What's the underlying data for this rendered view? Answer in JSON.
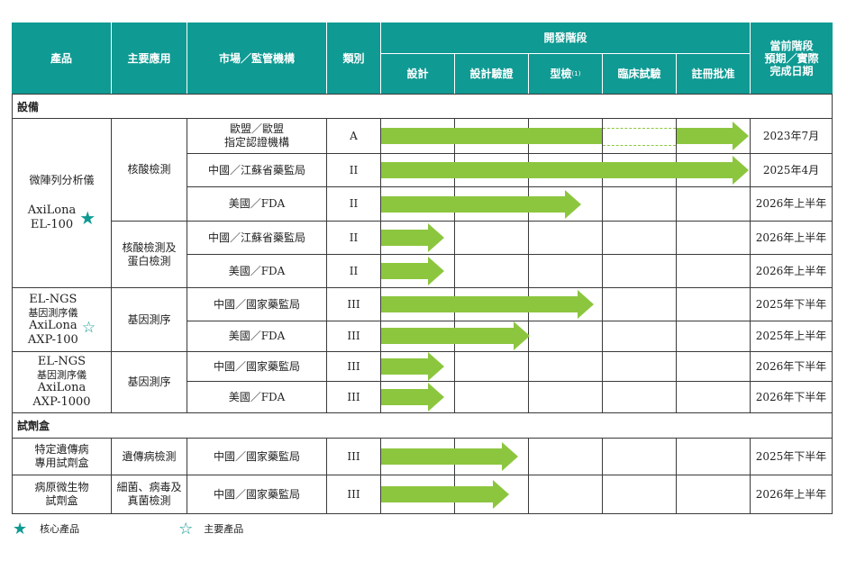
{
  "header": {
    "product": "產品",
    "application": "主要應用",
    "market": "市場／監管機構",
    "category": "類別",
    "dev_stage": "開發階段",
    "stages": [
      "設計",
      "設計驗證",
      "型檢",
      "臨床試驗",
      "註冊批准"
    ],
    "stage_note": "(1)",
    "current_line1": "當前階段",
    "current_line2": "預期／實際",
    "current_line3": "完成日期"
  },
  "sections": {
    "equipment": "設備",
    "kits": "試劑盒"
  },
  "products": {
    "p1_name_cn": "微陣列分析儀",
    "p1_name_en_1": "AxiLona",
    "p1_name_en_2": "EL-100",
    "p1_app1": "核酸檢測",
    "p1_app2_l1": "核酸檢測及",
    "p1_app2_l2": "蛋白檢測",
    "p2_l1": "EL-NGS",
    "p2_l2": "基因測序儀",
    "p2_l3": "AxiLona",
    "p2_l4": "AXP-100",
    "p2_app": "基因測序",
    "p3_l1": "EL-NGS",
    "p3_l2": "基因測序儀",
    "p3_l3": "AxiLona",
    "p3_l4": "AXP-1000",
    "p3_app": "基因測序",
    "k1_l1": "特定遺傳病",
    "k1_l2": "專用試劑盒",
    "k1_app": "遺傳病檢測",
    "k2_l1": "病原微生物",
    "k2_l2": "試劑盒",
    "k2_app_l1": "細菌、病毒及",
    "k2_app_l2": "真菌檢測"
  },
  "rows": [
    {
      "market_l1": "歐盟／歐盟",
      "market_l2": "指定認證機構",
      "category": "A",
      "date": "2023年7月"
    },
    {
      "market_l1": "中國／江蘇省藥監局",
      "market_l2": "",
      "category": "II",
      "date": "2025年4月"
    },
    {
      "market_l1": "美國／FDA",
      "market_l2": "",
      "category": "II",
      "date": "2026年上半年"
    },
    {
      "market_l1": "中國／江蘇省藥監局",
      "market_l2": "",
      "category": "II",
      "date": "2026年上半年"
    },
    {
      "market_l1": "美國／FDA",
      "market_l2": "",
      "category": "II",
      "date": "2026年上半年"
    },
    {
      "market_l1": "中國／國家藥監局",
      "market_l2": "",
      "category": "III",
      "date": "2025年下半年"
    },
    {
      "market_l1": "美國／FDA",
      "market_l2": "",
      "category": "III",
      "date": "2025年上半年"
    },
    {
      "market_l1": "中國／國家藥監局",
      "market_l2": "",
      "category": "III",
      "date": "2026年下半年"
    },
    {
      "market_l1": "美國／FDA",
      "market_l2": "",
      "category": "III",
      "date": "2026年下半年"
    },
    {
      "market_l1": "中國／國家藥監局",
      "market_l2": "",
      "category": "III",
      "date": "2025年下半年"
    },
    {
      "market_l1": "中國／國家藥監局",
      "market_l2": "",
      "category": "III",
      "date": "2026年上半年"
    }
  ],
  "legend": {
    "core": "核心產品",
    "key": "主要產品"
  },
  "colors": {
    "header_teal": "#0f9a93",
    "arrow_green": "#8cc63f"
  },
  "icons": {
    "core": "filled-star-icon",
    "key": "outline-star-icon"
  }
}
